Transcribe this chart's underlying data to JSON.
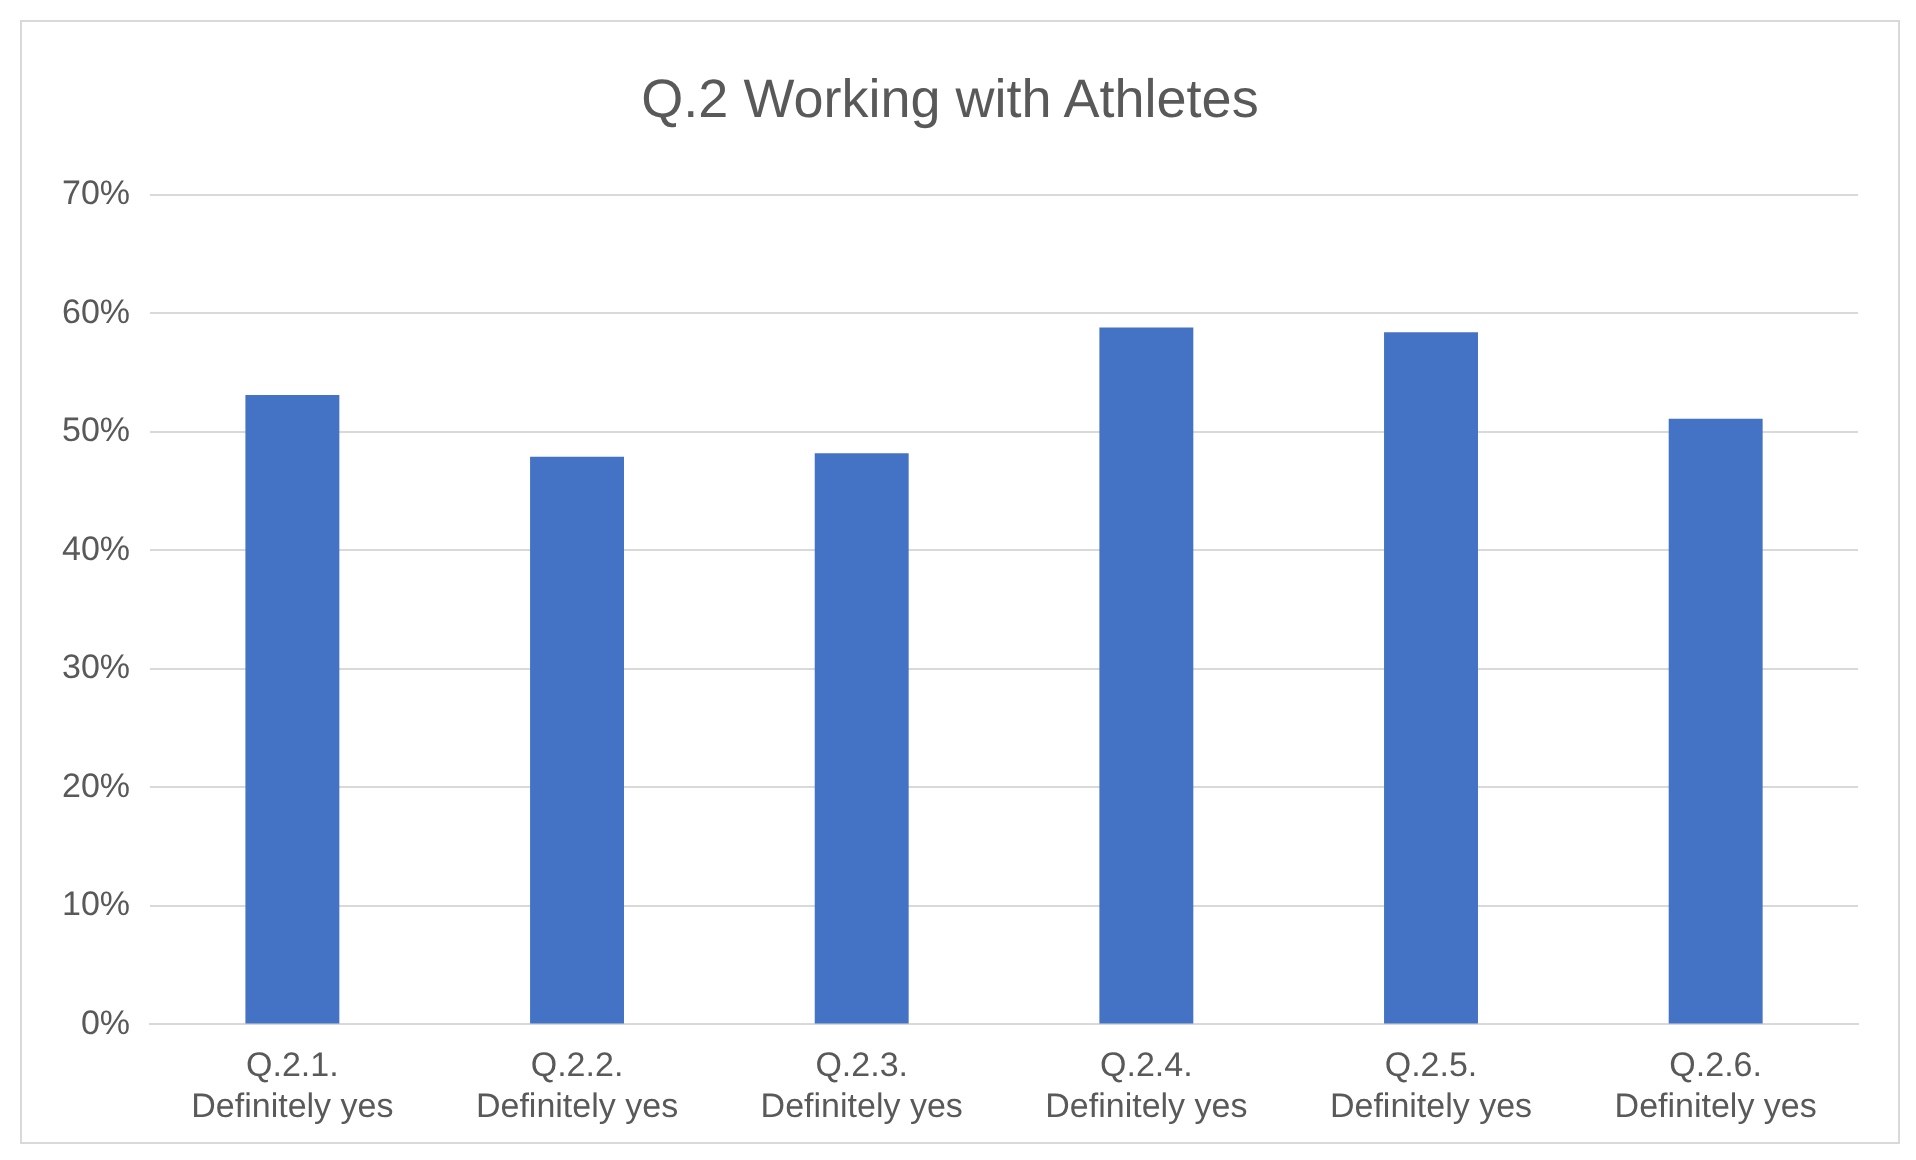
{
  "chart_data": {
    "type": "bar",
    "title": "Q.2 Working with Athletes",
    "categories": [
      "Q.2.1.\nDefinitely yes",
      "Q.2.2.\nDefinitely yes",
      "Q.2.3.\nDefinitely yes",
      "Q.2.4.\nDefinitely yes",
      "Q.2.5.\nDefinitely yes",
      "Q.2.6.\nDefinitely yes"
    ],
    "values": [
      53.1,
      47.9,
      48.2,
      58.8,
      58.4,
      51.1
    ],
    "color": "#4472c4",
    "ylim": [
      0,
      70
    ],
    "yticks": [
      {
        "value": 0,
        "label": "0%"
      },
      {
        "value": 10,
        "label": "10%"
      },
      {
        "value": 20,
        "label": "20%"
      },
      {
        "value": 30,
        "label": "30%"
      },
      {
        "value": 40,
        "label": "40%"
      },
      {
        "value": 50,
        "label": "50%"
      },
      {
        "value": 60,
        "label": "60%"
      },
      {
        "value": 70,
        "label": "70%"
      }
    ],
    "grid": "y"
  }
}
